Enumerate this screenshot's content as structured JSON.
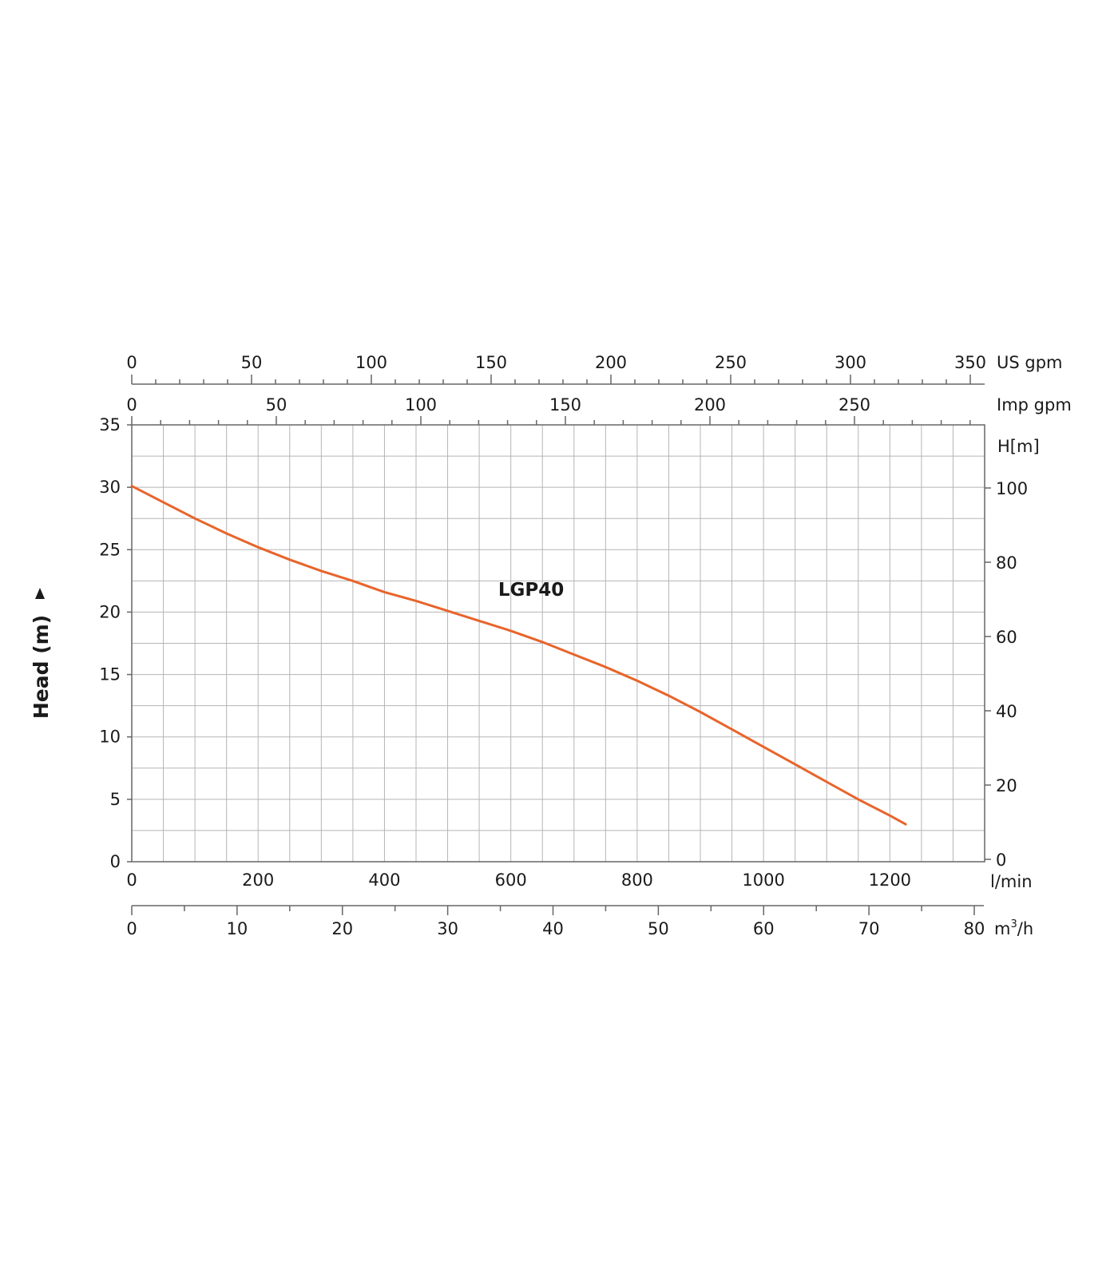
{
  "chart_data": {
    "type": "line",
    "series": [
      {
        "name": "LGP40",
        "color": "#e8642b",
        "points": [
          [
            0,
            30.1
          ],
          [
            50,
            28.8
          ],
          [
            100,
            27.5
          ],
          [
            150,
            26.3
          ],
          [
            200,
            25.2
          ],
          [
            250,
            24.2
          ],
          [
            300,
            23.3
          ],
          [
            350,
            22.5
          ],
          [
            400,
            21.6
          ],
          [
            450,
            20.9
          ],
          [
            500,
            20.1
          ],
          [
            550,
            19.3
          ],
          [
            600,
            18.5
          ],
          [
            650,
            17.6
          ],
          [
            700,
            16.6
          ],
          [
            750,
            15.6
          ],
          [
            800,
            14.5
          ],
          [
            850,
            13.3
          ],
          [
            900,
            12.0
          ],
          [
            950,
            10.6
          ],
          [
            1000,
            9.2
          ],
          [
            1050,
            7.8
          ],
          [
            1100,
            6.4
          ],
          [
            1150,
            5.0
          ],
          [
            1200,
            3.7
          ],
          [
            1225,
            3.0
          ]
        ]
      }
    ],
    "axes": {
      "x_main": {
        "unit": "l/min",
        "range": [
          0,
          1350
        ],
        "ticks": [
          {
            "value": 0,
            "label": "0"
          },
          {
            "value": 200,
            "label": "200"
          },
          {
            "value": 400,
            "label": "400"
          },
          {
            "value": 600,
            "label": "600"
          },
          {
            "value": 800,
            "label": "800"
          },
          {
            "value": 1000,
            "label": "1000"
          },
          {
            "value": 1200,
            "label": "1200"
          }
        ],
        "grid_step": 50
      },
      "x_m3h": {
        "unit_base": "m",
        "unit_sup": "3",
        "unit_tail": "/h",
        "range": [
          0,
          80
        ],
        "ticks": [
          {
            "value": 0,
            "label": "0"
          },
          {
            "value": 10,
            "label": "10"
          },
          {
            "value": 20,
            "label": "20"
          },
          {
            "value": 30,
            "label": "30"
          },
          {
            "value": 40,
            "label": "40"
          },
          {
            "value": 50,
            "label": "50"
          },
          {
            "value": 60,
            "label": "60"
          },
          {
            "value": 70,
            "label": "70"
          },
          {
            "value": 80,
            "label": "80"
          }
        ],
        "minor_step": 5
      },
      "x_us_gpm": {
        "unit": "US gpm",
        "ticks": [
          {
            "value": 0,
            "label": "0"
          },
          {
            "value": 50,
            "label": "50"
          },
          {
            "value": 100,
            "label": "100"
          },
          {
            "value": 150,
            "label": "150"
          },
          {
            "value": 200,
            "label": "200"
          },
          {
            "value": 250,
            "label": "250"
          },
          {
            "value": 300,
            "label": "300"
          },
          {
            "value": 350,
            "label": "350"
          }
        ],
        "minor_step": 10
      },
      "x_imp_gpm": {
        "unit": "Imp gpm",
        "ticks": [
          {
            "value": 0,
            "label": "0"
          },
          {
            "value": 50,
            "label": "50"
          },
          {
            "value": 100,
            "label": "100"
          },
          {
            "value": 150,
            "label": "150"
          },
          {
            "value": 200,
            "label": "200"
          },
          {
            "value": 250,
            "label": "250"
          }
        ],
        "minor_step": 10
      },
      "y_main": {
        "title": "Head (m)",
        "range": [
          0,
          35
        ],
        "ticks": [
          {
            "value": 0,
            "label": "0"
          },
          {
            "value": 5,
            "label": "5"
          },
          {
            "value": 10,
            "label": "10"
          },
          {
            "value": 15,
            "label": "15"
          },
          {
            "value": 20,
            "label": "20"
          },
          {
            "value": 25,
            "label": "25"
          },
          {
            "value": 30,
            "label": "30"
          },
          {
            "value": 35,
            "label": "35"
          }
        ],
        "grid_step": 2.5
      },
      "y_right": {
        "unit": "H[m]",
        "ticks": [
          {
            "value": 0,
            "label": "0"
          },
          {
            "value": 20,
            "label": "20"
          },
          {
            "value": 40,
            "label": "40"
          },
          {
            "value": 60,
            "label": "60"
          },
          {
            "value": 80,
            "label": "80"
          },
          {
            "value": 100,
            "label": "100"
          }
        ]
      }
    },
    "annotations": [
      {
        "text": "LGP40",
        "x": 580,
        "y": 21.3
      }
    ],
    "grid": true
  }
}
